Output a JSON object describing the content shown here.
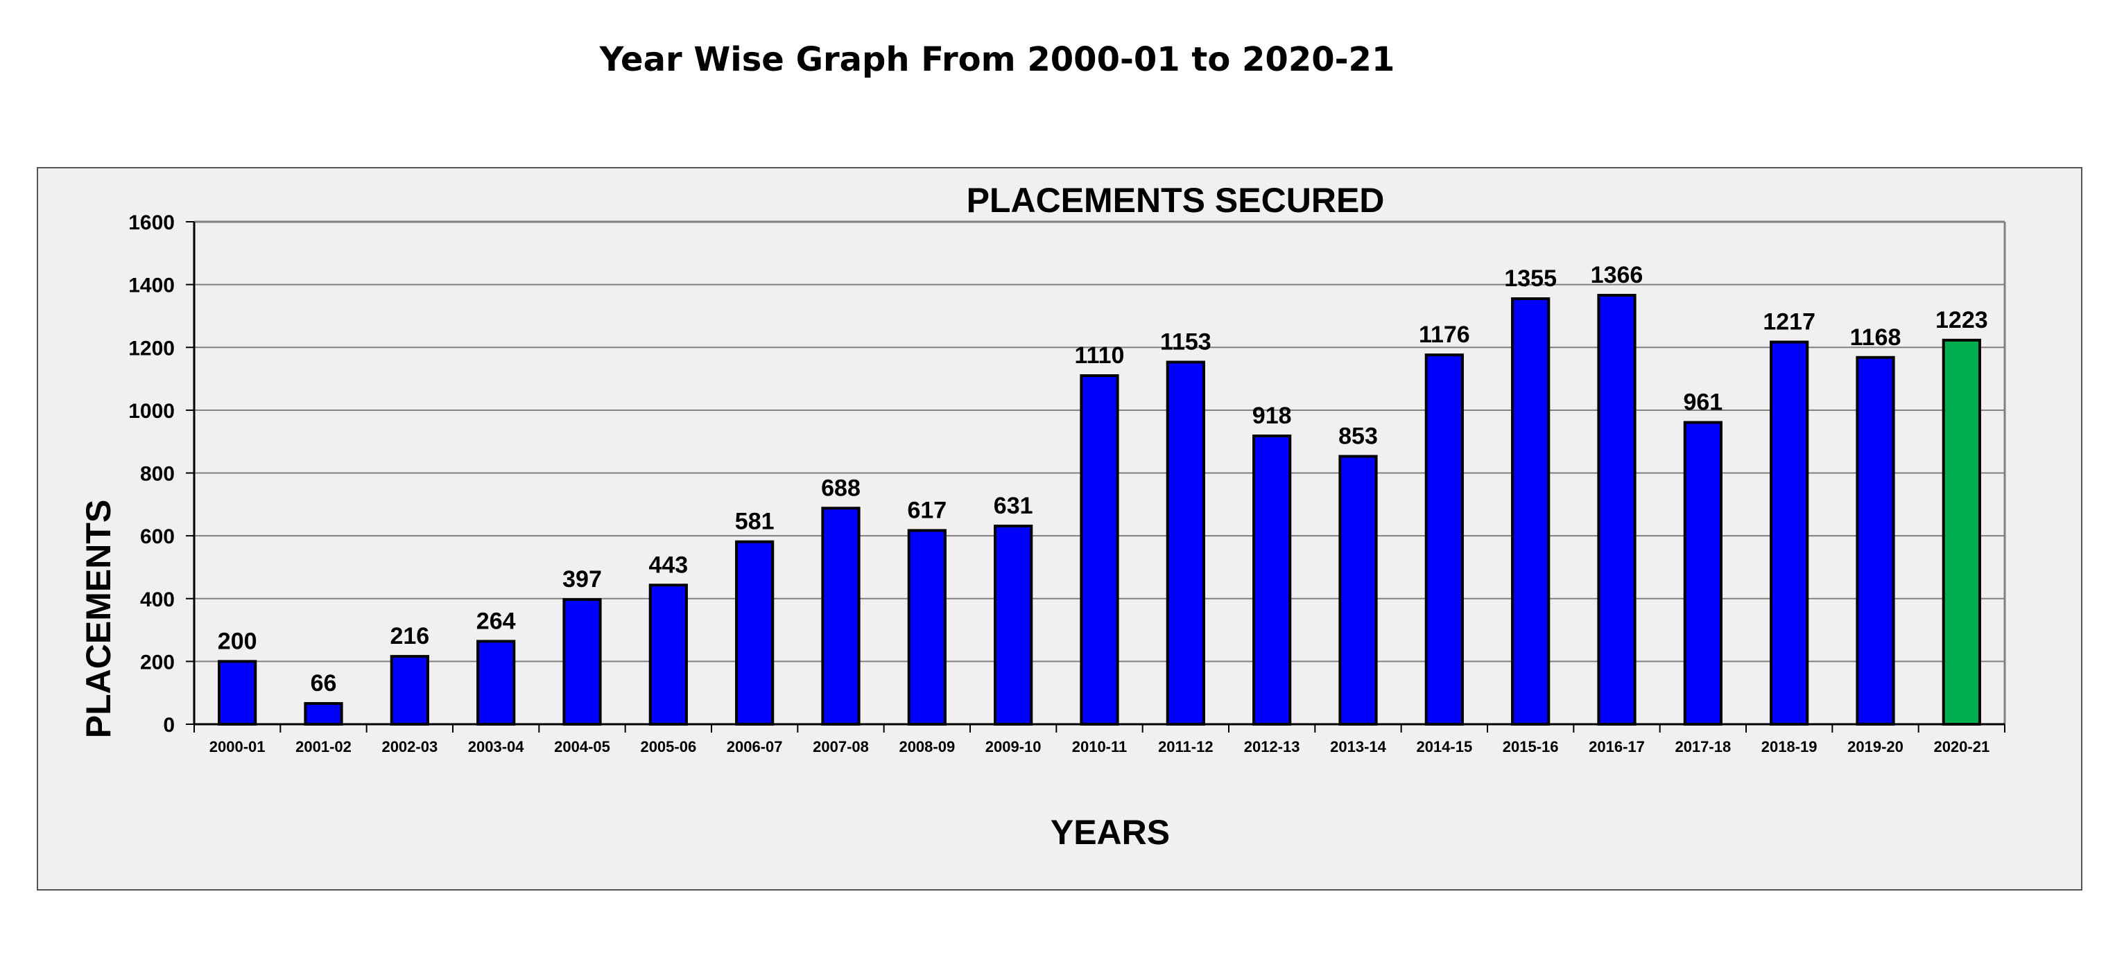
{
  "page": {
    "title": "Year Wise Graph From 2000-01 to 2020-21"
  },
  "chart_data": {
    "type": "bar",
    "title": "PLACEMENTS SECURED",
    "xlabel": "YEARS",
    "ylabel": "PLACEMENTS",
    "ylim": [
      0,
      1600
    ],
    "yticks": [
      0,
      200,
      400,
      600,
      800,
      1000,
      1200,
      1400,
      1600
    ],
    "grid": true,
    "legend": "none",
    "categories": [
      "2000-01",
      "2001-02",
      "2002-03",
      "2003-04",
      "2004-05",
      "2005-06",
      "2006-07",
      "2007-08",
      "2008-09",
      "2009-10",
      "2010-11",
      "2011-12",
      "2012-13",
      "2013-14",
      "2014-15",
      "2015-16",
      "2016-17",
      "2017-18",
      "2018-19",
      "2019-20",
      "2020-21"
    ],
    "values": [
      200,
      66,
      216,
      264,
      397,
      443,
      581,
      688,
      617,
      631,
      1110,
      1153,
      918,
      853,
      1176,
      1355,
      1366,
      961,
      1217,
      1168,
      1223
    ],
    "colors": {
      "bar": "#0000ff",
      "highlight_bar": "#00b050",
      "bar_outline": "#000000",
      "gridline": "#808080",
      "plot_background": "#f0f0f0"
    },
    "highlight_category": "2020-21"
  }
}
